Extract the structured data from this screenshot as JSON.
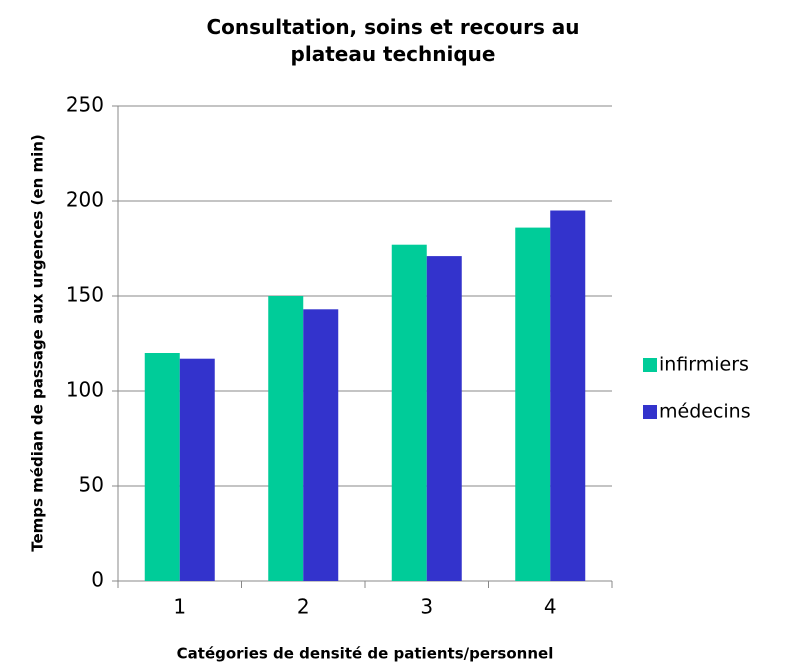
{
  "chart_data": {
    "type": "bar",
    "title": "Consultation, soins et recours au plateau technique",
    "x_label": "Catégories de densité de patients/personnel",
    "y_label": "Temps médian de passage aux urgences (en min)",
    "categories": [
      "1",
      "2",
      "3",
      "4"
    ],
    "series": [
      {
        "name": "infirmiers",
        "color": "#00cc99",
        "values": [
          120,
          150,
          177,
          186
        ]
      },
      {
        "name": "médecins",
        "color": "#3333cc",
        "values": [
          117,
          143,
          171,
          195
        ]
      }
    ],
    "ylim": [
      0,
      250
    ],
    "yticks": [
      0,
      50,
      100,
      150,
      200,
      250
    ],
    "grid": true,
    "legend": "right"
  }
}
